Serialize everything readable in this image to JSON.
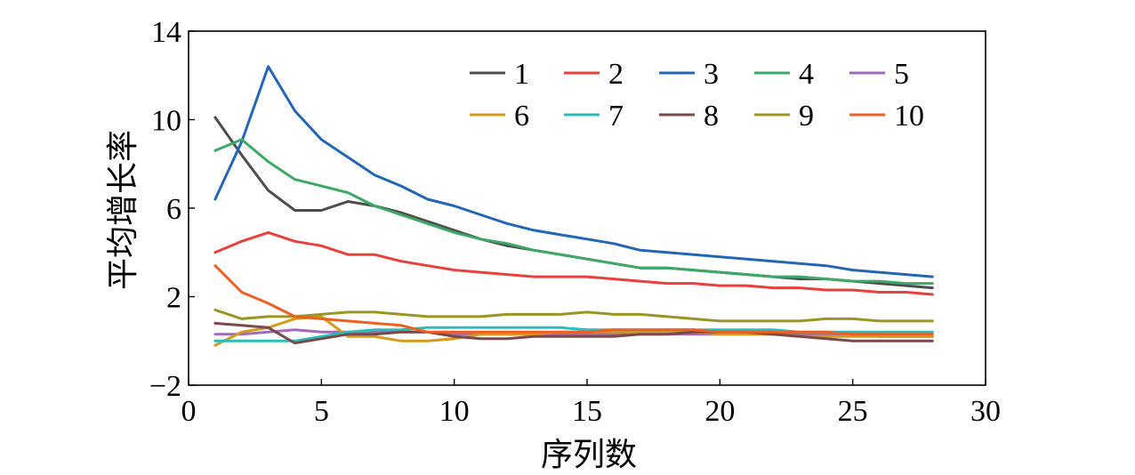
{
  "chart_data": {
    "type": "line",
    "title": "",
    "xlabel": "序列数",
    "ylabel": "平均增长率",
    "xlim": [
      0,
      30
    ],
    "ylim": [
      -2,
      14
    ],
    "xticks": [
      0,
      5,
      10,
      15,
      20,
      25,
      30
    ],
    "yticks": [
      -2,
      2,
      6,
      10,
      14
    ],
    "xtick_labels": [
      "0",
      "5",
      "10",
      "15",
      "20",
      "25",
      "30"
    ],
    "ytick_labels": [
      "−2",
      "2",
      "6",
      "10",
      "14"
    ],
    "grid": false,
    "legend_position": "top-right",
    "x": [
      1,
      2,
      3,
      4,
      5,
      6,
      7,
      8,
      9,
      10,
      11,
      12,
      13,
      14,
      15,
      16,
      17,
      18,
      19,
      20,
      21,
      22,
      23,
      24,
      25,
      26,
      27,
      28
    ],
    "series": [
      {
        "name": "1",
        "color": "#4d4d4d",
        "values": [
          10.1,
          8.4,
          6.8,
          5.9,
          5.9,
          6.3,
          6.1,
          5.8,
          5.4,
          5.0,
          4.6,
          4.3,
          4.1,
          3.9,
          3.7,
          3.5,
          3.3,
          3.3,
          3.2,
          3.1,
          3.0,
          2.9,
          2.8,
          2.8,
          2.7,
          2.6,
          2.5,
          2.4
        ]
      },
      {
        "name": "2",
        "color": "#e8403c",
        "values": [
          4.0,
          4.5,
          4.9,
          4.5,
          4.3,
          3.9,
          3.9,
          3.6,
          3.4,
          3.2,
          3.1,
          3.0,
          2.9,
          2.9,
          2.9,
          2.8,
          2.7,
          2.6,
          2.6,
          2.5,
          2.5,
          2.4,
          2.4,
          2.3,
          2.3,
          2.2,
          2.2,
          2.1
        ]
      },
      {
        "name": "3",
        "color": "#2466b6",
        "values": [
          6.4,
          9.0,
          12.4,
          10.4,
          9.1,
          8.3,
          7.5,
          7.0,
          6.4,
          6.1,
          5.7,
          5.3,
          5.0,
          4.8,
          4.6,
          4.4,
          4.1,
          4.0,
          3.9,
          3.8,
          3.7,
          3.6,
          3.5,
          3.4,
          3.2,
          3.1,
          3.0,
          2.9
        ]
      },
      {
        "name": "4",
        "color": "#3ea967",
        "values": [
          8.6,
          9.1,
          8.1,
          7.3,
          7.0,
          6.7,
          6.1,
          5.7,
          5.3,
          4.9,
          4.6,
          4.4,
          4.1,
          3.9,
          3.7,
          3.5,
          3.3,
          3.3,
          3.2,
          3.1,
          3.0,
          2.9,
          2.9,
          2.8,
          2.7,
          2.7,
          2.6,
          2.6
        ]
      },
      {
        "name": "5",
        "color": "#a16bb9",
        "values": [
          0.3,
          0.3,
          0.4,
          0.5,
          0.4,
          0.4,
          0.4,
          0.4,
          0.4,
          0.3,
          0.3,
          0.3,
          0.3,
          0.3,
          0.3,
          0.3,
          0.3,
          0.3,
          0.3,
          0.3,
          0.3,
          0.3,
          0.3,
          0.3,
          0.3,
          0.2,
          0.2,
          0.2
        ]
      },
      {
        "name": "6",
        "color": "#d49a1b",
        "values": [
          -0.2,
          0.4,
          0.6,
          1.0,
          1.1,
          0.2,
          0.2,
          0.0,
          0.0,
          0.1,
          0.3,
          0.3,
          0.3,
          0.4,
          0.4,
          0.4,
          0.4,
          0.4,
          0.4,
          0.3,
          0.3,
          0.3,
          0.2,
          0.2,
          0.2,
          0.2,
          0.2,
          0.2
        ]
      },
      {
        "name": "7",
        "color": "#2bbdbb",
        "values": [
          0.0,
          0.0,
          0.0,
          0.0,
          0.2,
          0.4,
          0.5,
          0.5,
          0.6,
          0.6,
          0.6,
          0.6,
          0.6,
          0.6,
          0.5,
          0.5,
          0.5,
          0.5,
          0.5,
          0.5,
          0.5,
          0.5,
          0.4,
          0.4,
          0.4,
          0.4,
          0.4,
          0.4
        ]
      },
      {
        "name": "8",
        "color": "#7a4a4a",
        "values": [
          0.8,
          0.7,
          0.6,
          -0.1,
          0.1,
          0.3,
          0.3,
          0.4,
          0.4,
          0.2,
          0.1,
          0.1,
          0.2,
          0.2,
          0.2,
          0.2,
          0.3,
          0.3,
          0.4,
          0.4,
          0.4,
          0.3,
          0.2,
          0.1,
          0.0,
          0.0,
          0.0,
          0.0
        ]
      },
      {
        "name": "9",
        "color": "#9b9525",
        "values": [
          1.4,
          1.0,
          1.1,
          1.1,
          1.2,
          1.3,
          1.3,
          1.2,
          1.1,
          1.1,
          1.1,
          1.2,
          1.2,
          1.2,
          1.3,
          1.2,
          1.2,
          1.1,
          1.0,
          0.9,
          0.9,
          0.9,
          0.9,
          1.0,
          1.0,
          0.9,
          0.9,
          0.9
        ]
      },
      {
        "name": "10",
        "color": "#ec6123",
        "values": [
          3.4,
          2.2,
          1.7,
          1.1,
          1.0,
          0.9,
          0.8,
          0.7,
          0.4,
          0.4,
          0.4,
          0.4,
          0.4,
          0.4,
          0.4,
          0.5,
          0.5,
          0.5,
          0.5,
          0.4,
          0.4,
          0.4,
          0.4,
          0.4,
          0.3,
          0.3,
          0.3,
          0.3
        ]
      }
    ]
  }
}
